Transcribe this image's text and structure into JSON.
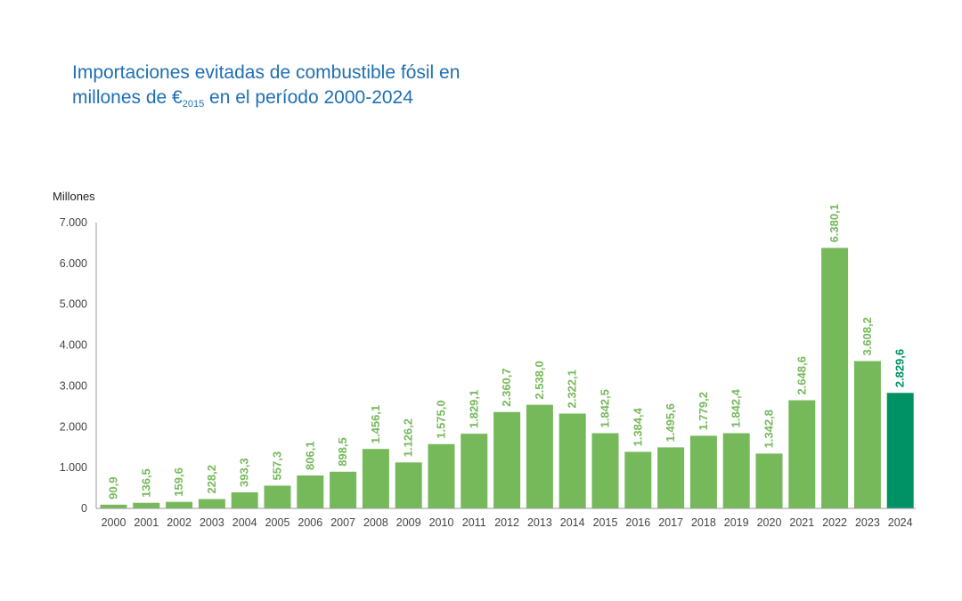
{
  "chart_data": {
    "type": "bar",
    "title_part1": "Importaciones evitadas de combustible fósil en",
    "title_part2": "millones de €",
    "title_sub": "2015",
    "title_part3": " en el período 2000-2024",
    "unit_label": "Millones",
    "ylim": [
      0,
      7000
    ],
    "yticks": [
      0,
      1000,
      2000,
      3000,
      4000,
      5000,
      6000,
      7000
    ],
    "ytick_labels": [
      "0",
      "1.000",
      "2.000",
      "3.000",
      "4.000",
      "5.000",
      "6.000",
      "7.000"
    ],
    "categories": [
      "2000",
      "2001",
      "2002",
      "2003",
      "2004",
      "2005",
      "2006",
      "2007",
      "2008",
      "2009",
      "2010",
      "2011",
      "2012",
      "2013",
      "2014",
      "2015",
      "2016",
      "2017",
      "2018",
      "2019",
      "2020",
      "2021",
      "2022",
      "2023",
      "2024"
    ],
    "values": [
      90.9,
      136.5,
      159.6,
      228.2,
      393.3,
      557.3,
      806.1,
      898.5,
      1456.1,
      1126.2,
      1575.0,
      1829.1,
      2360.7,
      2538.0,
      2322.1,
      1842.5,
      1384.4,
      1495.6,
      1779.2,
      1842.4,
      1342.8,
      2648.6,
      6380.1,
      3608.2,
      2829.6
    ],
    "value_labels": [
      "90,9",
      "136,5",
      "159,6",
      "228,2",
      "393,3",
      "557,3",
      "806,1",
      "898,5",
      "1.456,1",
      "1.126,2",
      "1.575,0",
      "1.829,1",
      "2.360,7",
      "2.538,0",
      "2.322,1",
      "1.842,5",
      "1.384,4",
      "1.495,6",
      "1.779,2",
      "1.842,4",
      "1.342,8",
      "2.648,6",
      "6.380,1",
      "3.608,2",
      "2.829,6"
    ],
    "colors": {
      "bar": "#76b95b",
      "highlight_bar": "#009164",
      "label": "#76b95b",
      "highlight_label": "#009164",
      "title": "#1f6fb5"
    },
    "highlight_index": 24,
    "grid": false
  }
}
